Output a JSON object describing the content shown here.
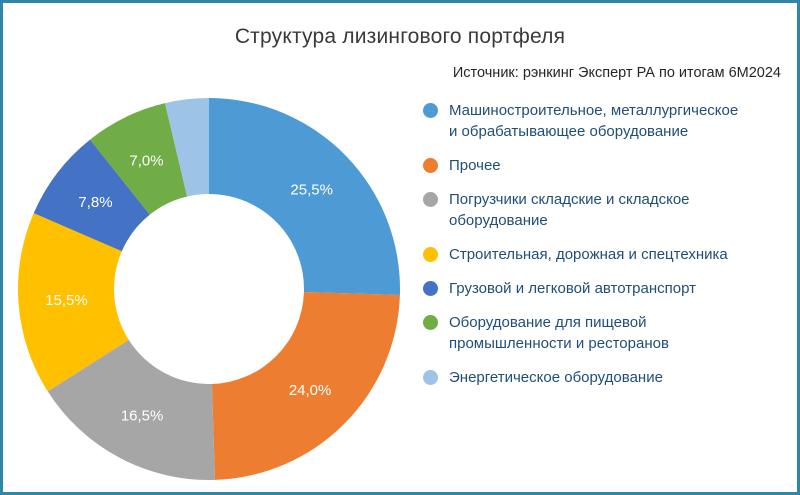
{
  "chart_data": {
    "type": "pie",
    "subtype": "donut",
    "title": "Структура лизингового портфеля",
    "source": "Источник: рэнкинг Эксперт РА по итогам 6М2024",
    "start_angle_deg": 0,
    "direction": "clockwise",
    "legend_position": "right",
    "series": [
      {
        "label": "Машиностроительное, металлургическое и обрабатывающее оборудование",
        "value": 25.5,
        "display": "25,5%",
        "color": "#4D9AD4"
      },
      {
        "label": "Прочее",
        "value": 24.0,
        "display": "24,0%",
        "color": "#ED7D31"
      },
      {
        "label": "Погрузчики складские и складское оборудование",
        "value": 16.5,
        "display": "16,5%",
        "color": "#A6A6A6"
      },
      {
        "label": "Строительная, дорожная и спецтехника",
        "value": 15.5,
        "display": "15,5%",
        "color": "#FFC000"
      },
      {
        "label": "Грузовой и легковой автотранспорт",
        "value": 7.8,
        "display": "7,8%",
        "color": "#4472C4"
      },
      {
        "label": "Оборудование для пищевой промышленности и ресторанов",
        "value": 7.0,
        "display": "7,0%",
        "color": "#70AD47"
      },
      {
        "label": "Энергетическое оборудование",
        "value": 3.7,
        "display": "",
        "color": "#9DC3E6"
      }
    ],
    "colors": {
      "frame_border": "#2E86AB",
      "title_text": "#3a3a3a",
      "legend_text": "#1F4E79",
      "slice_label_text": "#ffffff"
    }
  }
}
